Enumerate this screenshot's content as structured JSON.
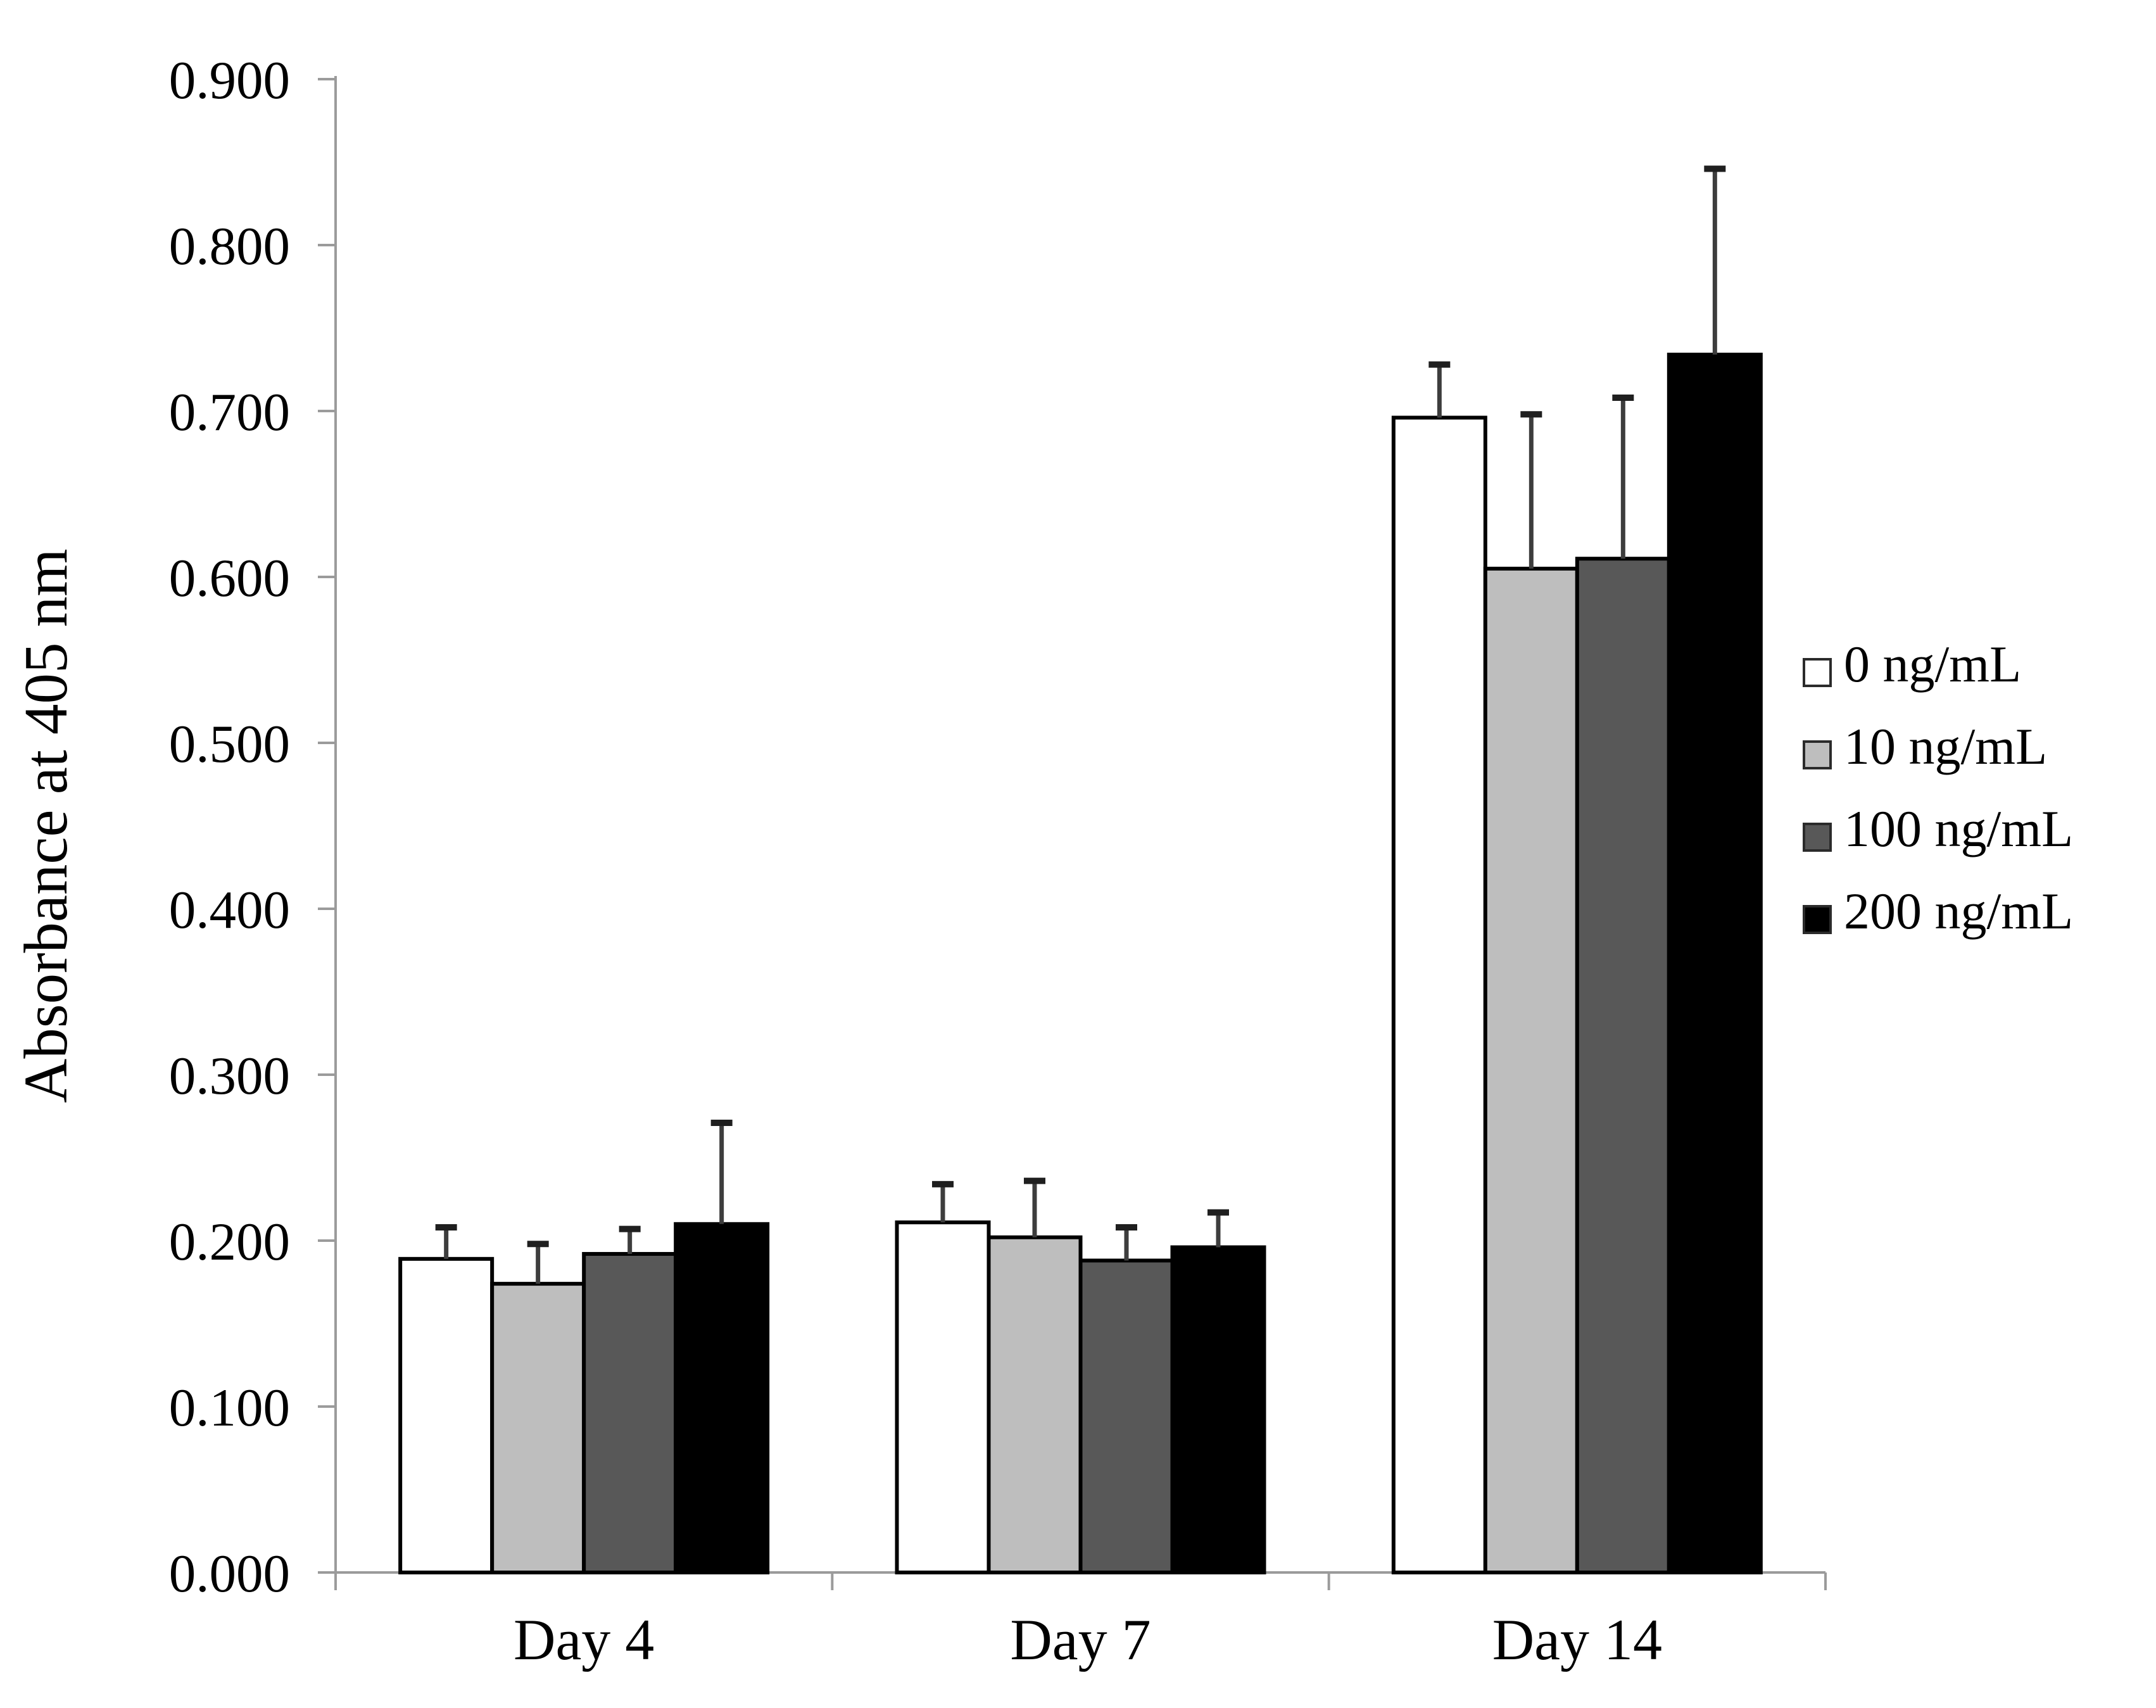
{
  "chart_data": {
    "type": "bar",
    "title": "",
    "xlabel": "",
    "ylabel": "Absorbance at 405 nm",
    "categories": [
      "Day 4",
      "Day 7",
      "Day 14"
    ],
    "series": [
      {
        "name": "0 ng/mL",
        "color": "#FFFFFF",
        "values": [
          0.189,
          0.211,
          0.696
        ],
        "errors_up": [
          0.019,
          0.023,
          0.032
        ]
      },
      {
        "name": "10 ng/mL",
        "color": "#BEBEBE",
        "values": [
          0.174,
          0.202,
          0.605
        ],
        "errors_up": [
          0.024,
          0.034,
          0.093
        ]
      },
      {
        "name": "100 ng/mL",
        "color": "#585858",
        "values": [
          0.192,
          0.188,
          0.611
        ],
        "errors_up": [
          0.015,
          0.02,
          0.097
        ]
      },
      {
        "name": "200 ng/mL",
        "color": "#000000",
        "values": [
          0.21,
          0.196,
          0.734
        ],
        "errors_up": [
          0.061,
          0.021,
          0.112
        ]
      }
    ],
    "ylim": [
      0.0,
      0.9
    ],
    "ytick_step": 0.1,
    "ytick_labels": [
      "0.000",
      "0.100",
      "0.200",
      "0.300",
      "0.400",
      "0.500",
      "0.600",
      "0.700",
      "0.800",
      "0.900"
    ],
    "ytick_decimals": 3,
    "grid": "off",
    "legend_position": "right",
    "legend_entries": [
      "0 ng/mL",
      "10 ng/mL",
      "100 ng/mL",
      "200 ng/mL"
    ],
    "bar_outline_color": "#000000",
    "error_bar_color": "#3d3d3d",
    "axis_line_color": "#9b9b9b",
    "text_color": "#000000",
    "background_color": "#ffffff"
  }
}
